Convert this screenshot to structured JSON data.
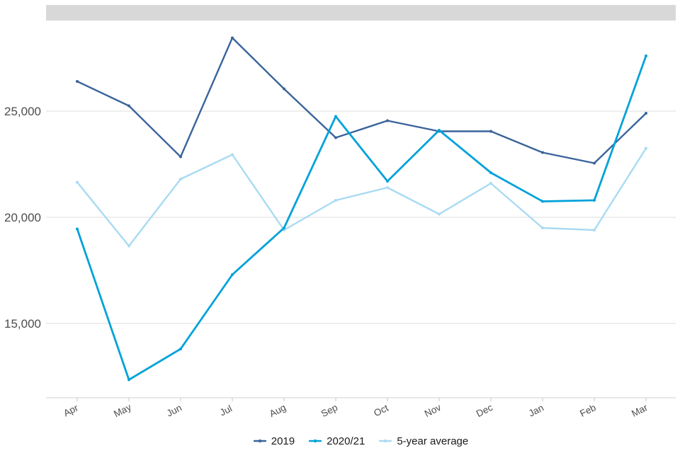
{
  "colors": {
    "top_bar": "#d8d8d8",
    "gridline": "#dcdcdc",
    "axis_line": "#cfcfcf",
    "tick": "#c6c6c6",
    "axis_text": "#4d4d4d",
    "legend_text": "#1a1a1a"
  },
  "chart_data": {
    "type": "line",
    "categories": [
      "Apr",
      "May",
      "Jun",
      "Jul",
      "Aug",
      "Sep",
      "Oct",
      "Nov",
      "Dec",
      "Jan",
      "Feb",
      "Mar"
    ],
    "series": [
      {
        "name": "2019",
        "color": "#3a649b",
        "values": [
          26400,
          25250,
          22850,
          28450,
          26050,
          23750,
          24550,
          24050,
          24050,
          23050,
          22550,
          24900
        ]
      },
      {
        "name": "2020/21",
        "color": "#00a2d9",
        "values": [
          19450,
          12350,
          13800,
          17300,
          19500,
          24750,
          21700,
          24100,
          22100,
          20750,
          20800,
          27600
        ]
      },
      {
        "name": "5-year average",
        "color": "#a9dbf2",
        "values": [
          21650,
          18650,
          21800,
          22950,
          19400,
          20800,
          21400,
          20150,
          21600,
          19500,
          19400,
          23250
        ]
      }
    ],
    "yticks": [
      {
        "value": 15000,
        "label": "15,000"
      },
      {
        "value": 20000,
        "label": "20,000"
      },
      {
        "value": 25000,
        "label": "25,000"
      }
    ],
    "ylim": [
      11500,
      28900
    ],
    "grid": true,
    "legend_position": "bottom-center"
  }
}
